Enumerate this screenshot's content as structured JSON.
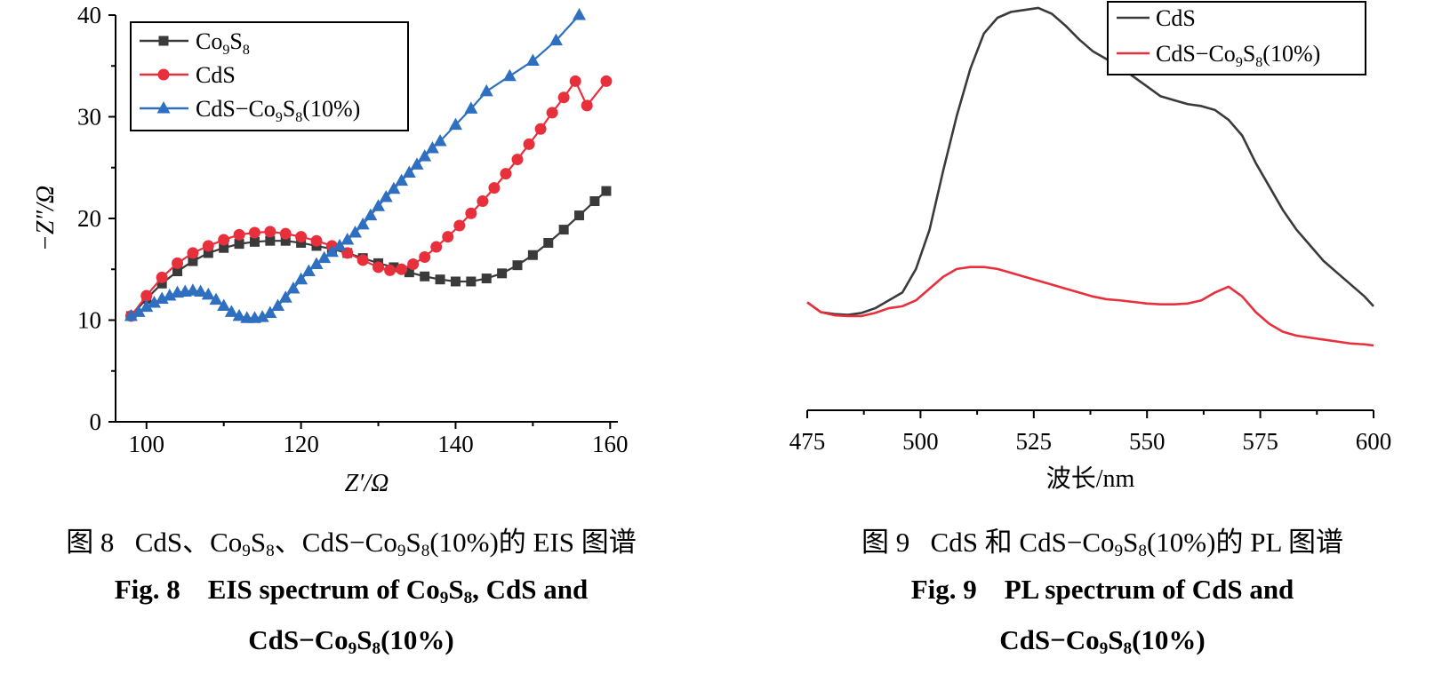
{
  "chart_data": [
    {
      "type": "line",
      "xlabel": "Z′/Ω",
      "ylabel": "−Z″/Ω",
      "xlim": [
        96,
        161
      ],
      "ylim": [
        0,
        40
      ],
      "xticks": [
        100,
        120,
        140,
        160
      ],
      "yticks": [
        0,
        10,
        20,
        30,
        40
      ],
      "legend_position": "top-left",
      "series": [
        {
          "name": "Co9S8",
          "color": "#3a3a3a",
          "marker": "square",
          "x": [
            98,
            100,
            102,
            104,
            106,
            108,
            110,
            112,
            114,
            116,
            118,
            120,
            122,
            124,
            126,
            128,
            130,
            132,
            134,
            136,
            138,
            140,
            142,
            144,
            146,
            148,
            150,
            152,
            154,
            156,
            158,
            159.5
          ],
          "y": [
            10.4,
            12.1,
            13.6,
            14.8,
            15.8,
            16.6,
            17.1,
            17.5,
            17.7,
            17.8,
            17.8,
            17.6,
            17.3,
            17.0,
            16.6,
            16.1,
            15.6,
            15.2,
            14.7,
            14.3,
            14.0,
            13.8,
            13.8,
            14.1,
            14.6,
            15.4,
            16.4,
            17.6,
            18.9,
            20.3,
            21.7,
            22.7
          ]
        },
        {
          "name": "CdS",
          "color": "#e8303d",
          "marker": "circle",
          "x": [
            98,
            100,
            102,
            104,
            106,
            108,
            110,
            112,
            114,
            116,
            118,
            120,
            122,
            124,
            126,
            128,
            130,
            131.5,
            133,
            134.5,
            136,
            137.5,
            139,
            140.5,
            142,
            143.5,
            145,
            146.5,
            148,
            149.5,
            151,
            152.5,
            154,
            155.5,
            157,
            159.5
          ],
          "y": [
            10.4,
            12.4,
            14.2,
            15.6,
            16.6,
            17.3,
            17.9,
            18.4,
            18.6,
            18.7,
            18.5,
            18.2,
            17.8,
            17.3,
            16.6,
            15.9,
            15.2,
            14.9,
            15.0,
            15.5,
            16.2,
            17.2,
            18.2,
            19.3,
            20.5,
            21.7,
            23.0,
            24.4,
            25.8,
            27.3,
            28.8,
            30.4,
            31.9,
            33.5,
            31.1,
            33.5
          ]
        },
        {
          "name": "CdS−Co9S8(10%)",
          "color": "#2f6fc0",
          "marker": "triangle",
          "x": [
            98,
            99,
            100,
            101,
            102,
            103,
            104,
            105,
            106,
            107,
            108,
            109,
            110,
            111,
            112,
            113,
            114,
            115,
            116,
            117,
            118,
            119,
            120,
            121,
            122,
            123,
            124,
            125,
            126,
            127,
            128,
            129,
            130,
            131,
            132,
            133,
            134,
            135,
            136,
            137,
            138,
            140,
            142,
            144,
            147,
            150,
            153,
            156
          ],
          "y": [
            10.4,
            10.8,
            11.3,
            11.7,
            12.1,
            12.4,
            12.7,
            12.8,
            12.9,
            12.8,
            12.5,
            12.0,
            11.4,
            10.8,
            10.4,
            10.2,
            10.2,
            10.3,
            10.7,
            11.4,
            12.2,
            13.1,
            14.0,
            14.8,
            15.5,
            16.1,
            16.7,
            17.3,
            17.9,
            18.6,
            19.4,
            20.3,
            21.2,
            22.1,
            22.9,
            23.7,
            24.5,
            25.3,
            26.1,
            26.9,
            27.6,
            29.2,
            30.8,
            32.5,
            34.0,
            35.5,
            37.5,
            40.0
          ]
        }
      ]
    },
    {
      "type": "line",
      "xlabel": "波长/nm",
      "ylabel": "",
      "xlim": [
        475,
        600
      ],
      "xticks": [
        475,
        500,
        525,
        550,
        575,
        600
      ],
      "ylim": [
        0,
        100
      ],
      "legend_position": "top-right",
      "series": [
        {
          "name": "CdS",
          "color": "#3a3a3a",
          "x": [
            475,
            478,
            481,
            484,
            487,
            490,
            493,
            496,
            499,
            502,
            505,
            508,
            511,
            514,
            517,
            520,
            523,
            526,
            529,
            532,
            535,
            538,
            541,
            544,
            547,
            550,
            553,
            556,
            559,
            562,
            565,
            568,
            571,
            574,
            577,
            580,
            583,
            586,
            589,
            592,
            595,
            598,
            600
          ],
          "y": [
            27.5,
            25.0,
            24.5,
            24.3,
            24.8,
            26.0,
            28.0,
            30.0,
            36.0,
            46.0,
            61.0,
            75.0,
            87.0,
            96.0,
            100.0,
            101.5,
            102.0,
            102.5,
            101.0,
            98.0,
            94.5,
            91.5,
            89.5,
            87.5,
            85.0,
            82.5,
            80.0,
            79.0,
            78.0,
            77.5,
            76.5,
            74.0,
            70.0,
            63.0,
            57.0,
            51.0,
            46.0,
            42.0,
            38.0,
            35.0,
            32.0,
            29.0,
            26.5
          ]
        },
        {
          "name": "CdS−Co9S8(10%)",
          "color": "#e8303d",
          "x": [
            475,
            478,
            481,
            484,
            487,
            490,
            493,
            496,
            499,
            502,
            505,
            508,
            511,
            514,
            517,
            520,
            523,
            526,
            529,
            532,
            535,
            538,
            541,
            544,
            547,
            550,
            553,
            556,
            559,
            562,
            565,
            568,
            571,
            574,
            577,
            580,
            583,
            586,
            589,
            592,
            595,
            598,
            600
          ],
          "y": [
            27.5,
            25.0,
            24.2,
            24.0,
            24.0,
            24.8,
            26.0,
            26.5,
            28.0,
            31.0,
            34.0,
            36.0,
            36.5,
            36.5,
            36.0,
            35.0,
            34.0,
            33.0,
            32.0,
            31.0,
            30.0,
            29.0,
            28.3,
            28.0,
            27.6,
            27.2,
            27.0,
            27.0,
            27.2,
            28.0,
            30.0,
            31.5,
            29.0,
            25.0,
            22.0,
            20.0,
            19.0,
            18.5,
            18.0,
            17.5,
            17.0,
            16.8,
            16.5
          ]
        }
      ]
    }
  ],
  "captions": {
    "fig8_cn_prefix": "图 8",
    "fig8_cn_1": "CdS、Co",
    "fig8_cn_2": "S",
    "fig8_cn_3": "、CdS−Co",
    "fig8_cn_4": "S",
    "fig8_cn_5": "(10%)的 EIS 图谱",
    "fig8_en1_prefix": "Fig. 8",
    "fig8_en1_a": "EIS spectrum of Co",
    "fig8_en1_b": "S",
    "fig8_en1_c": ", CdS and",
    "fig8_en2_a": "CdS−Co",
    "fig8_en2_b": "S",
    "fig8_en2_c": "(10%)",
    "fig9_cn_prefix": "图 9",
    "fig9_cn_1": "CdS 和 CdS−Co",
    "fig9_cn_2": "S",
    "fig9_cn_3": "(10%)的 PL 图谱",
    "fig9_en1_prefix": "Fig. 9",
    "fig9_en1_a": "PL spectrum of CdS and",
    "fig9_en2_a": "CdS−Co",
    "fig9_en2_b": "S",
    "fig9_en2_c": "(10%)",
    "sub9": "9",
    "sub8": "8"
  }
}
